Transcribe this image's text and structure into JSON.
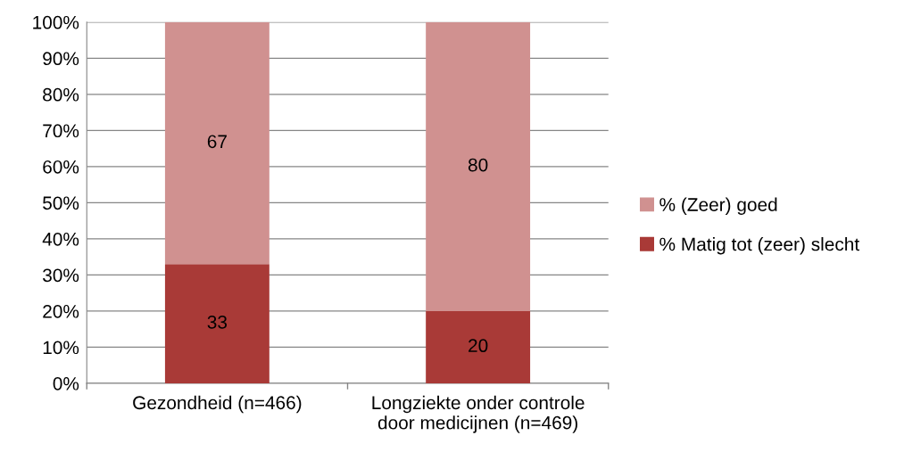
{
  "chart_data": {
    "type": "bar",
    "stacked": true,
    "categories": [
      "Gezondheid (n=466)",
      "Longziekte onder controle\ndoor medicijnen (n=469)"
    ],
    "series": [
      {
        "name": "% Matig tot (zeer) slecht",
        "color": "#a93a37",
        "values": [
          33,
          20
        ]
      },
      {
        "name": "% (Zeer) goed",
        "color": "#d09190",
        "values": [
          67,
          80
        ]
      }
    ],
    "ylim": [
      0,
      100
    ],
    "yticks": [
      {
        "value": 0,
        "label": "0%"
      },
      {
        "value": 10,
        "label": "10%"
      },
      {
        "value": 20,
        "label": "20%"
      },
      {
        "value": 30,
        "label": "30%"
      },
      {
        "value": 40,
        "label": "40%"
      },
      {
        "value": 50,
        "label": "50%"
      },
      {
        "value": 60,
        "label": "60%"
      },
      {
        "value": 70,
        "label": "70%"
      },
      {
        "value": 80,
        "label": "80%"
      },
      {
        "value": 90,
        "label": "90%"
      },
      {
        "value": 100,
        "label": "100%"
      }
    ],
    "grid": "y",
    "legend": "right",
    "data_labels": true
  }
}
